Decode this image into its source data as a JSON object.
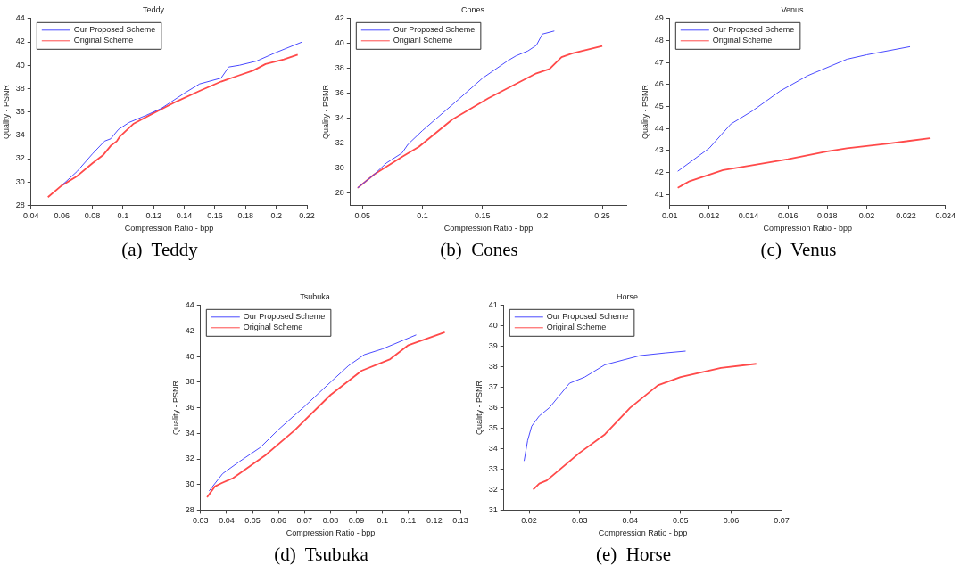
{
  "chart_data": [
    {
      "type": "line",
      "title": "Teddy",
      "xlabel": "Compression Ratio - bpp",
      "ylabel": "Quality - PSNR",
      "annotations": [
        "(a)  Teddy"
      ],
      "legend": "top left",
      "marker": "none",
      "grid": false,
      "xlim": [
        0.04,
        0.22
      ],
      "xticks": [
        0.04,
        0.06,
        0.08,
        0.1,
        0.12,
        0.14,
        0.16,
        0.18,
        0.2,
        0.22
      ],
      "ylim": [
        28,
        44
      ],
      "yticks": [
        28,
        30,
        32,
        34,
        36,
        38,
        40,
        42,
        44
      ],
      "series": [
        {
          "name": "Our Proposed Scheme",
          "color": "#4a4aff",
          "x": [
            0.06,
            0.07,
            0.08,
            0.088,
            0.092,
            0.097,
            0.104,
            0.115,
            0.125,
            0.14,
            0.15,
            0.164,
            0.169,
            0.176,
            0.187,
            0.2,
            0.217
          ],
          "values": [
            29.7,
            30.9,
            32.4,
            33.5,
            33.7,
            34.5,
            35.1,
            35.7,
            36.3,
            37.6,
            38.4,
            38.9,
            39.85,
            40.0,
            40.35,
            41.1,
            42.0
          ]
        },
        {
          "name": "Original Scheme",
          "color": "#ff4a4a",
          "x": [
            0.051,
            0.06,
            0.07,
            0.08,
            0.087,
            0.092,
            0.096,
            0.098,
            0.107,
            0.12,
            0.135,
            0.15,
            0.164,
            0.175,
            0.185,
            0.193,
            0.205,
            0.214
          ],
          "values": [
            28.7,
            29.7,
            30.5,
            31.6,
            32.3,
            33.1,
            33.5,
            33.9,
            35.0,
            35.9,
            36.9,
            37.8,
            38.6,
            39.1,
            39.55,
            40.1,
            40.5,
            40.9
          ]
        }
      ]
    },
    {
      "type": "line",
      "title": "Cones",
      "xlabel": "Compression Ratio - bpp",
      "ylabel": "Quality - PSNR",
      "annotations": [
        "(b)  Cones"
      ],
      "legend": "top left",
      "marker": "none",
      "grid": false,
      "xlim": [
        0.04,
        0.27
      ],
      "xticks": [
        0.05,
        0.1,
        0.15,
        0.2,
        0.25
      ],
      "ylim": [
        27,
        42
      ],
      "yticks": [
        28,
        30,
        32,
        34,
        36,
        38,
        40,
        42
      ],
      "series": [
        {
          "name": "Our Proposed Scheme",
          "color": "#4a4aff",
          "x": [
            0.046,
            0.06,
            0.07,
            0.083,
            0.088,
            0.1,
            0.13,
            0.15,
            0.171,
            0.178,
            0.188,
            0.195,
            0.2,
            0.21
          ],
          "values": [
            28.4,
            29.5,
            30.4,
            31.2,
            31.9,
            33.0,
            35.5,
            37.2,
            38.6,
            39.0,
            39.4,
            39.85,
            40.75,
            41.0
          ]
        },
        {
          "name": "Origianl Scheme",
          "color": "#ff4a4a",
          "x": [
            0.046,
            0.06,
            0.083,
            0.097,
            0.125,
            0.155,
            0.175,
            0.195,
            0.206,
            0.216,
            0.225,
            0.25
          ],
          "values": [
            28.4,
            29.5,
            30.9,
            31.7,
            33.9,
            35.6,
            36.6,
            37.6,
            37.95,
            38.9,
            39.2,
            39.8
          ]
        }
      ]
    },
    {
      "type": "line",
      "title": "Venus",
      "xlabel": "Compression Ratio - bpp",
      "ylabel": "Quality - PSNR",
      "annotations": [
        "(c)  Venus"
      ],
      "legend": "top left",
      "marker": "none",
      "grid": false,
      "xlim": [
        0.01,
        0.024
      ],
      "xticks": [
        0.01,
        0.012,
        0.014,
        0.016,
        0.018,
        0.02,
        0.022,
        0.024
      ],
      "ylim": [
        40.5,
        49
      ],
      "yticks": [
        41,
        42,
        43,
        44,
        45,
        46,
        47,
        48,
        49
      ],
      "series": [
        {
          "name": "Our Proposed Scheme",
          "color": "#4a4aff",
          "x": [
            0.0104,
            0.012,
            0.0125,
            0.0131,
            0.0142,
            0.0156,
            0.017,
            0.019,
            0.02,
            0.0222
          ],
          "values": [
            42.05,
            43.1,
            43.6,
            44.2,
            44.8,
            45.7,
            46.4,
            47.15,
            47.35,
            47.72
          ]
        },
        {
          "name": "Original Scheme",
          "color": "#ff4a4a",
          "x": [
            0.0104,
            0.011,
            0.0127,
            0.014,
            0.016,
            0.018,
            0.019,
            0.021,
            0.0232
          ],
          "values": [
            41.3,
            41.6,
            42.1,
            42.3,
            42.6,
            42.95,
            43.1,
            43.3,
            43.55
          ]
        }
      ]
    },
    {
      "type": "line",
      "title": "Tsubuka",
      "xlabel": "Compression Ratio - bpp",
      "ylabel": "Quality - PSNR",
      "annotations": [
        "(d)  Tsubuka"
      ],
      "legend": "top left",
      "marker": "none",
      "grid": false,
      "xlim": [
        0.03,
        0.13
      ],
      "xticks": [
        0.03,
        0.04,
        0.05,
        0.06,
        0.07,
        0.08,
        0.09,
        0.1,
        0.11,
        0.12,
        0.13
      ],
      "ylim": [
        28,
        44
      ],
      "yticks": [
        28,
        30,
        32,
        34,
        36,
        38,
        40,
        42,
        44
      ],
      "series": [
        {
          "name": "Our Proposed Scheme",
          "color": "#4a4aff",
          "x": [
            0.0333,
            0.0385,
            0.045,
            0.053,
            0.06,
            0.07,
            0.08,
            0.087,
            0.093,
            0.1,
            0.113
          ],
          "values": [
            29.5,
            30.85,
            31.8,
            32.9,
            34.3,
            36.1,
            38.0,
            39.3,
            40.15,
            40.6,
            41.7
          ]
        },
        {
          "name": "Original Scheme",
          "color": "#ff4a4a",
          "x": [
            0.0325,
            0.0355,
            0.038,
            0.0425,
            0.055,
            0.066,
            0.08,
            0.092,
            0.103,
            0.11,
            0.124
          ],
          "values": [
            29.0,
            29.85,
            30.1,
            30.5,
            32.3,
            34.2,
            37.0,
            38.9,
            39.8,
            40.9,
            41.9
          ]
        }
      ]
    },
    {
      "type": "line",
      "title": "Horse",
      "xlabel": "Compression Ratio - bpp",
      "ylabel": "Quality - PSNR",
      "annotations": [
        "(e)  Horse"
      ],
      "legend": "top left",
      "marker": "none",
      "grid": false,
      "xlim": [
        0.015,
        0.07
      ],
      "xticks": [
        0.02,
        0.03,
        0.04,
        0.05,
        0.06,
        0.07
      ],
      "ylim": [
        31,
        41
      ],
      "yticks": [
        31,
        32,
        33,
        34,
        35,
        36,
        37,
        38,
        39,
        40,
        41
      ],
      "series": [
        {
          "name": "Our Proposed Scheme",
          "color": "#4a4aff",
          "x": [
            0.019,
            0.0197,
            0.0205,
            0.022,
            0.024,
            0.028,
            0.031,
            0.035,
            0.042,
            0.047,
            0.051
          ],
          "values": [
            33.4,
            34.4,
            35.1,
            35.6,
            36.0,
            37.2,
            37.5,
            38.1,
            38.55,
            38.68,
            38.77
          ]
        },
        {
          "name": "Original Scheme",
          "color": "#ff4a4a",
          "x": [
            0.0208,
            0.022,
            0.0235,
            0.03,
            0.035,
            0.04,
            0.0455,
            0.05,
            0.058,
            0.065
          ],
          "values": [
            32.0,
            32.3,
            32.45,
            33.8,
            34.7,
            36.0,
            37.1,
            37.5,
            37.95,
            38.15
          ]
        }
      ]
    }
  ]
}
